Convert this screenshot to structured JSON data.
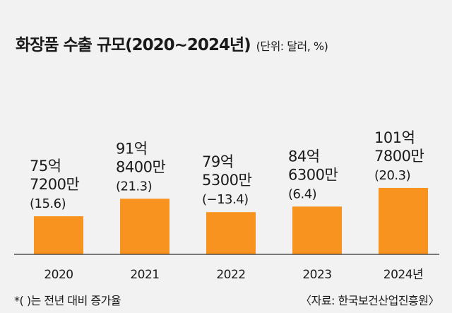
{
  "title": "화장품 수출 규모(2020~2024년)",
  "unit_note": "(단위: 달러, %)",
  "footnote": "*(    )는 전년 대비 증가율",
  "source": "〈자료: 한국보건산업진흥원〉",
  "colors": {
    "bar": "#f7931e",
    "background": "#f2f2f2",
    "text": "#1a1a1a"
  },
  "chart_data": {
    "type": "bar",
    "categories": [
      "2020",
      "2021",
      "2022",
      "2023",
      "2024년"
    ],
    "values": [
      7572000000,
      9184000000,
      7953000000,
      8463000000,
      10178000000
    ],
    "value_labels": [
      [
        "75억",
        "7200만"
      ],
      [
        "91억",
        "8400만"
      ],
      [
        "79억",
        "5300만"
      ],
      [
        "84억",
        "6300만"
      ],
      [
        "101억",
        "7800만"
      ]
    ],
    "growth_labels": [
      "(15.6)",
      "(21.3)",
      "(−13.4)",
      "(6.4)",
      "(20.3)"
    ],
    "grid": false,
    "legend": "none"
  }
}
